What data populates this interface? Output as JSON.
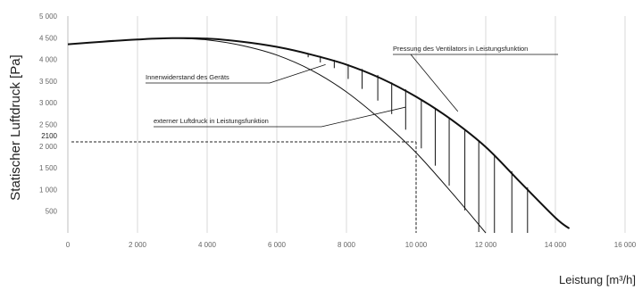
{
  "chart_data": {
    "type": "line",
    "ylabel": "Statischer Luftdruck [Pa]",
    "xlabel": "Leistung [m³/h]",
    "xlim": [
      0,
      16000
    ],
    "ylim": [
      0,
      5000
    ],
    "x_ticks": [
      {
        "value": 0,
        "label": "0"
      },
      {
        "value": 2000,
        "label": "2 000"
      },
      {
        "value": 4000,
        "label": "4 000"
      },
      {
        "value": 6000,
        "label": "6 000"
      },
      {
        "value": 8000,
        "label": "8 000"
      },
      {
        "value": 10000,
        "label": "10 000"
      },
      {
        "value": 12000,
        "label": "12 000"
      },
      {
        "value": 14000,
        "label": "14 000"
      },
      {
        "value": 16000,
        "label": "16 000"
      }
    ],
    "y_ticks": [
      {
        "value": 500,
        "label": "500"
      },
      {
        "value": 1000,
        "label": "1 000"
      },
      {
        "value": 1500,
        "label": "1 500"
      },
      {
        "value": 2000,
        "label": "2 000"
      },
      {
        "value": 2500,
        "label": "2 500"
      },
      {
        "value": 3000,
        "label": "3 000"
      },
      {
        "value": 3500,
        "label": "3 500"
      },
      {
        "value": 4000,
        "label": "4 000"
      },
      {
        "value": 4500,
        "label": "4 500"
      },
      {
        "value": 5000,
        "label": "5 000"
      }
    ],
    "grid": "vertical",
    "series": [
      {
        "name": "Pressung des Ventilators in Leistungsfunktion",
        "stroke_color": "#111111",
        "x": [
          0,
          1000,
          2000,
          3000,
          4000,
          5000,
          6000,
          7000,
          8000,
          9000,
          10000,
          11000,
          12000,
          13000,
          14000,
          14400
        ],
        "y": [
          4350,
          4410,
          4460,
          4490,
          4480,
          4410,
          4290,
          4110,
          3880,
          3560,
          3140,
          2620,
          1980,
          1160,
          350,
          100
        ]
      },
      {
        "name": "externer Luftdruck in Leistungsfunktion",
        "stroke_color": "#111111",
        "x": [
          3000,
          4000,
          5000,
          6000,
          7000,
          8000,
          9000,
          10000,
          11000,
          12000
        ],
        "y": [
          4490,
          4450,
          4320,
          4100,
          3750,
          3250,
          2600,
          1850,
          950,
          0
        ]
      }
    ],
    "hatching": {
      "description_label": "Innenwiderstand des Geräts",
      "x": [
        6900,
        7250,
        7650,
        8050,
        8450,
        8900,
        9300,
        9700,
        10150,
        10550,
        10950,
        11400,
        11800,
        12250,
        12750,
        13200
      ],
      "y_top": [
        4140,
        4080,
        3990,
        3890,
        3780,
        3640,
        3470,
        3310,
        3080,
        2870,
        2630,
        2370,
        2110,
        1800,
        1420,
        1050
      ],
      "y_bottom": [
        4050,
        3930,
        3800,
        3550,
        3320,
        3050,
        2740,
        2380,
        1950,
        1550,
        1090,
        520,
        20,
        0,
        0,
        0
      ]
    },
    "operating_point": {
      "x": 10000,
      "y": 2100,
      "y_label": "2100"
    },
    "annotations": [
      {
        "id": "fan-pressure",
        "text": "Pressung des Ventilators in Leistungsfunktion",
        "target_x": 11200,
        "target_y": 2800
      },
      {
        "id": "internal-resistance",
        "text": "Innenwiderstand des Geräts",
        "target_x": 7400,
        "target_y": 3880
      },
      {
        "id": "external-pressure",
        "text": "externer Luftdruck in Leistungsfunktion",
        "target_x": 9700,
        "target_y": 2900
      }
    ]
  }
}
